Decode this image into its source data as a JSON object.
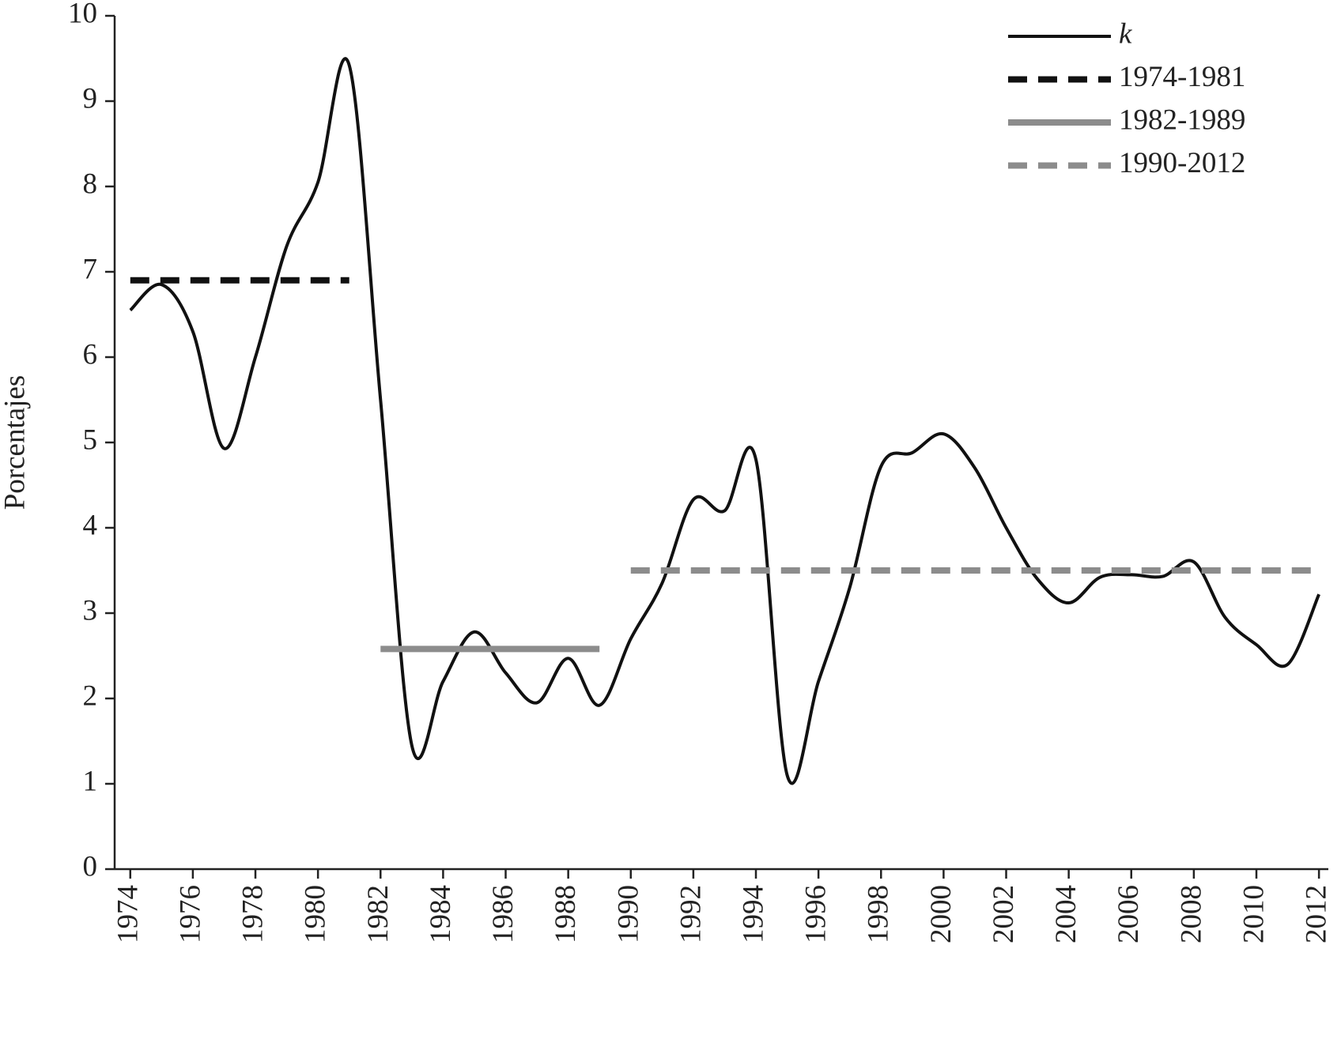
{
  "chart_data": {
    "type": "line",
    "y_label": "Porcentajes",
    "xlim": [
      1973.5,
      2012.3
    ],
    "ylim": [
      0,
      10
    ],
    "xticks": [
      1974,
      1976,
      1978,
      1980,
      1982,
      1984,
      1986,
      1988,
      1990,
      1992,
      1994,
      1996,
      1998,
      2000,
      2002,
      2004,
      2006,
      2008,
      2010,
      2012
    ],
    "yticks": [
      0,
      1,
      2,
      3,
      4,
      5,
      6,
      7,
      8,
      9,
      10
    ],
    "legend": "top-right",
    "series": [
      {
        "name": "k",
        "color": "#111111",
        "dashed": false,
        "smooth": true,
        "x": [
          1974,
          1975,
          1976,
          1977,
          1978,
          1979,
          1980,
          1981,
          1982,
          1983,
          1984,
          1985,
          1986,
          1987,
          1988,
          1989,
          1990,
          1991,
          1992,
          1993,
          1994,
          1995,
          1996,
          1997,
          1998,
          1999,
          2000,
          2001,
          2002,
          2003,
          2004,
          2005,
          2006,
          2007,
          2008,
          2009,
          2010,
          2011,
          2012
        ],
        "values": [
          6.55,
          6.85,
          6.3,
          4.93,
          6.0,
          7.3,
          8.05,
          9.42,
          5.5,
          1.45,
          2.2,
          2.78,
          2.3,
          1.95,
          2.47,
          1.92,
          2.7,
          3.35,
          4.33,
          4.2,
          4.8,
          1.1,
          2.2,
          3.3,
          4.72,
          4.88,
          5.1,
          4.7,
          4.0,
          3.4,
          3.12,
          3.42,
          3.45,
          3.43,
          3.6,
          2.95,
          2.63,
          2.4,
          3.22
        ]
      },
      {
        "name": "1974-1981",
        "color": "#111111",
        "dashed": true,
        "smooth": false,
        "x": [
          1974,
          1981
        ],
        "values": [
          6.9,
          6.9
        ]
      },
      {
        "name": "1982-1989",
        "color": "#8c8c8c",
        "dashed": false,
        "smooth": false,
        "x": [
          1982,
          1989
        ],
        "values": [
          2.58,
          2.58
        ]
      },
      {
        "name": "1990-2012",
        "color": "#8c8c8c",
        "dashed": true,
        "smooth": false,
        "x": [
          1990,
          2012
        ],
        "values": [
          3.5,
          3.5
        ]
      }
    ]
  }
}
